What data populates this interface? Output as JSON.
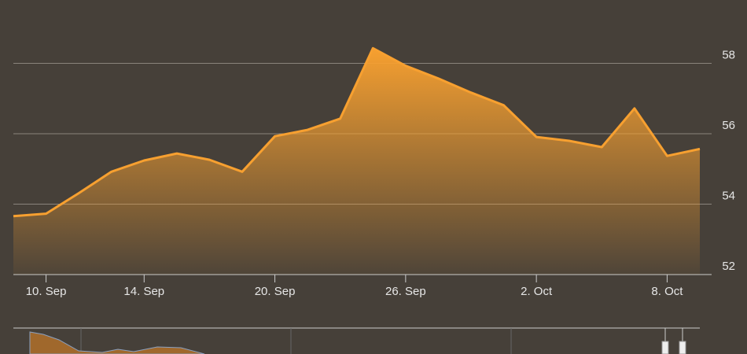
{
  "chart_data": {
    "type": "area",
    "categories": [
      null,
      "10. Sep",
      null,
      null,
      "14. Sep",
      null,
      null,
      null,
      "20. Sep",
      null,
      null,
      null,
      "26. Sep",
      null,
      null,
      null,
      "2. Oct",
      null,
      null,
      null,
      "8. Oct",
      null
    ],
    "series": [
      {
        "color": "#f7a030",
        "values": [
          53.66,
          53.73,
          54.31,
          54.92,
          55.24,
          55.44,
          55.26,
          54.92,
          55.93,
          56.11,
          56.43,
          58.43,
          57.93,
          57.57,
          57.17,
          56.81,
          55.91,
          55.8,
          55.62,
          56.72,
          55.37,
          55.57
        ]
      }
    ],
    "ylim": [
      52,
      59.8
    ],
    "yticks": [
      52,
      54,
      56,
      58
    ],
    "grid": true
  }
}
